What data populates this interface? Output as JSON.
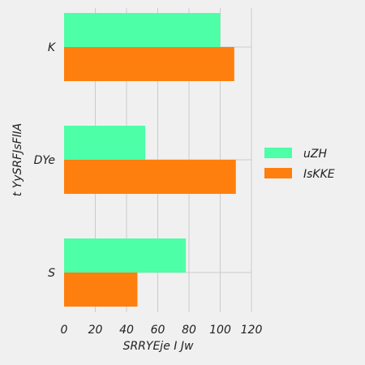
{
  "chart_data": {
    "type": "bar",
    "orientation": "horizontal",
    "categories": [
      "K",
      "DYe",
      "S"
    ],
    "series": [
      {
        "name": "uZH",
        "color": "#4dffa6",
        "values": [
          100,
          52,
          78
        ]
      },
      {
        "name": "IsKKE",
        "color": "#ff7f0e",
        "values": [
          109,
          110,
          47
        ]
      }
    ],
    "xlabel": "SRRYEje I  Jw",
    "ylabel": "t YySRFJsFlIA",
    "xlim": [
      0,
      120
    ],
    "xticks": [
      0,
      20,
      40,
      60,
      80,
      100,
      120
    ],
    "grid": true,
    "legend_position": "right"
  }
}
